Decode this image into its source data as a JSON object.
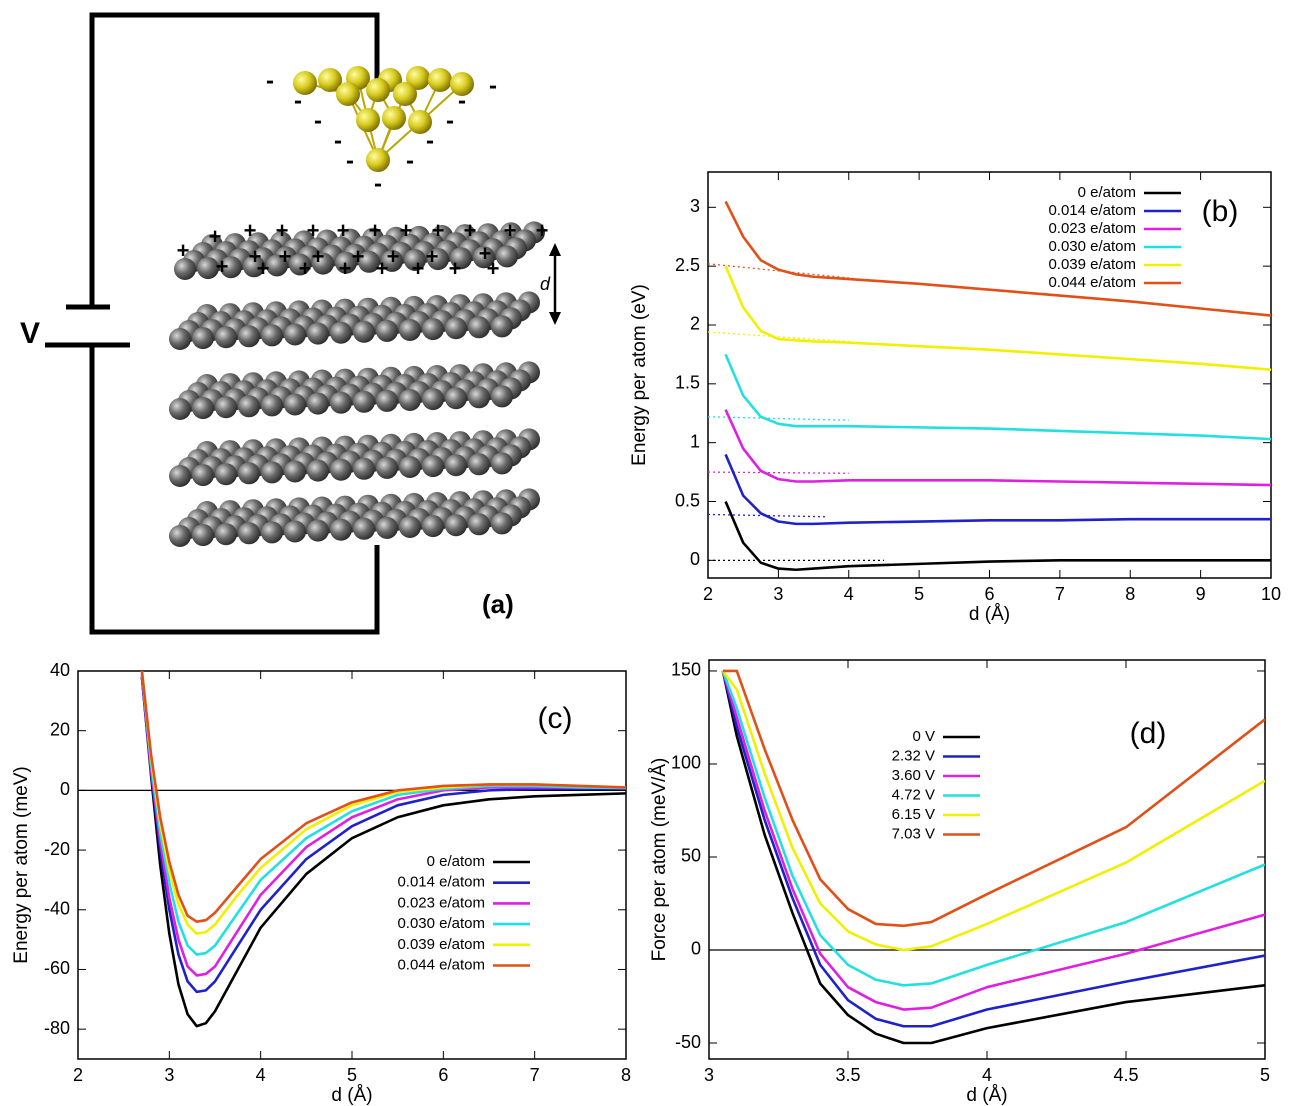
{
  "diagram": {
    "voltage_label": "V",
    "distance_label": "d",
    "panel_label": "(a)",
    "positive_charge": "+",
    "negative_charge": "-"
  },
  "chart_data": [
    {
      "type": "line",
      "panel_label": "(b)",
      "x_label": "d (Å)",
      "y_label": "Energy per atom (eV)",
      "x": [
        2.25,
        2.5,
        2.75,
        3,
        3.25,
        3.5,
        4,
        5,
        6,
        7,
        8,
        9,
        10
      ],
      "xlim": [
        2,
        10
      ],
      "ylim": [
        -0.15,
        3.3
      ],
      "xticks": [
        2,
        3,
        4,
        5,
        6,
        7,
        8,
        9,
        10
      ],
      "yticks": [
        0,
        0.5,
        1,
        1.5,
        2,
        2.5,
        3
      ],
      "legend": "upper right",
      "zero_line": false,
      "series": [
        {
          "name": "0 e/atom",
          "color": "#000000",
          "values": [
            0.5,
            0.15,
            -0.02,
            -0.07,
            -0.08,
            -0.07,
            -0.05,
            -0.03,
            -0.01,
            0,
            0,
            0,
            0
          ]
        },
        {
          "name": "0.014 e/atom",
          "color": "#1f22c8",
          "values": [
            0.9,
            0.55,
            0.4,
            0.33,
            0.31,
            0.31,
            0.32,
            0.33,
            0.34,
            0.34,
            0.35,
            0.35,
            0.35
          ]
        },
        {
          "name": "0.023 e/atom",
          "color": "#e020e0",
          "values": [
            1.28,
            0.95,
            0.76,
            0.69,
            0.67,
            0.67,
            0.68,
            0.68,
            0.68,
            0.67,
            0.66,
            0.65,
            0.64
          ]
        },
        {
          "name": "0.030 e/atom",
          "color": "#22e0e0",
          "values": [
            1.75,
            1.4,
            1.22,
            1.16,
            1.14,
            1.14,
            1.14,
            1.13,
            1.12,
            1.1,
            1.08,
            1.06,
            1.03
          ]
        },
        {
          "name": "0.039 e/atom",
          "color": "#f0f000",
          "values": [
            2.5,
            2.15,
            1.95,
            1.88,
            1.87,
            1.86,
            1.85,
            1.82,
            1.79,
            1.75,
            1.71,
            1.67,
            1.62
          ]
        },
        {
          "name": "0.044 e/atom",
          "color": "#e05018",
          "values": [
            3.05,
            2.75,
            2.55,
            2.47,
            2.43,
            2.41,
            2.39,
            2.35,
            2.3,
            2.25,
            2.2,
            2.14,
            2.08
          ]
        }
      ],
      "reference_lines": [
        {
          "color": "#000000",
          "x": [
            2,
            4.5
          ],
          "values": [
            0,
            0
          ]
        },
        {
          "color": "#1f22c8",
          "x": [
            2,
            3.7
          ],
          "values": [
            0.39,
            0.37
          ]
        },
        {
          "color": "#e020e0",
          "x": [
            2,
            4
          ],
          "values": [
            0.75,
            0.74
          ]
        },
        {
          "color": "#22e0e0",
          "x": [
            2,
            4
          ],
          "values": [
            1.22,
            1.19
          ]
        },
        {
          "color": "#f0f000",
          "x": [
            2,
            4
          ],
          "values": [
            1.94,
            1.86
          ]
        },
        {
          "color": "#e05018",
          "x": [
            2,
            4
          ],
          "values": [
            2.52,
            2.4
          ]
        }
      ]
    },
    {
      "type": "line",
      "panel_label": "(c)",
      "x_label": "d (Å)",
      "y_label": "Energy per atom (meV)",
      "x": [
        2.7,
        2.8,
        2.9,
        3,
        3.1,
        3.2,
        3.3,
        3.4,
        3.5,
        3.75,
        4,
        4.5,
        5,
        5.5,
        6,
        6.5,
        7,
        7.5,
        8
      ],
      "xlim": [
        2,
        8
      ],
      "ylim": [
        -90,
        40
      ],
      "xticks": [
        2,
        3,
        4,
        5,
        6,
        7,
        8
      ],
      "yticks": [
        -80,
        -60,
        -40,
        -20,
        0,
        20,
        40
      ],
      "legend": "lower right",
      "zero_line": true,
      "series": [
        {
          "name": "0 e/atom",
          "color": "#000000",
          "values": [
            38,
            5,
            -25,
            -48,
            -65,
            -75,
            -79,
            -78,
            -74,
            -60,
            -46,
            -28,
            -16,
            -9,
            -5,
            -3,
            -2,
            -1.5,
            -1
          ]
        },
        {
          "name": "0.014 e/atom",
          "color": "#1f22c8",
          "values": [
            38,
            6,
            -20,
            -40,
            -55,
            -64,
            -67.5,
            -67,
            -64,
            -52,
            -40,
            -23,
            -12,
            -5,
            -1.5,
            0,
            0.5,
            0.5,
            0.5
          ]
        },
        {
          "name": "0.023 e/atom",
          "color": "#e020e0",
          "values": [
            39,
            7,
            -17,
            -36,
            -50,
            -59,
            -62,
            -61.5,
            -59,
            -47,
            -35,
            -19,
            -9,
            -3,
            0,
            1,
            1,
            1,
            0.8
          ]
        },
        {
          "name": "0.030 e/atom",
          "color": "#22e0e0",
          "values": [
            40,
            9,
            -14,
            -31,
            -44,
            -52,
            -55,
            -54.5,
            -52,
            -41,
            -30,
            -16,
            -7,
            -1.5,
            0.5,
            1.5,
            1.5,
            1,
            0.8
          ]
        },
        {
          "name": "0.039 e/atom",
          "color": "#f0f000",
          "values": [
            40,
            11,
            -11,
            -27,
            -38,
            -45,
            -48,
            -47.5,
            -45,
            -35,
            -26,
            -13,
            -5,
            -0.5,
            1,
            2,
            2,
            1.5,
            1
          ]
        },
        {
          "name": "0.044 e/atom",
          "color": "#e05018",
          "values": [
            40,
            12,
            -9,
            -24,
            -35,
            -42,
            -44,
            -43.5,
            -41,
            -32,
            -23,
            -11,
            -4,
            0,
            1.5,
            2,
            2,
            1.5,
            1
          ]
        }
      ]
    },
    {
      "type": "line",
      "panel_label": "(d)",
      "x_label": "d (Å)",
      "y_label": "Force per atom (meV/Å)",
      "x": [
        3.05,
        3.1,
        3.2,
        3.3,
        3.4,
        3.5,
        3.6,
        3.7,
        3.8,
        4,
        4.5,
        5
      ],
      "xlim": [
        3,
        5
      ],
      "ylim": [
        -58.6,
        155.9
      ],
      "xticks": [
        3,
        3.5,
        4,
        4.5,
        5
      ],
      "yticks": [
        -50,
        0,
        50,
        100,
        150
      ],
      "legend": "upper center",
      "zero_line": true,
      "series": [
        {
          "name": "0 V",
          "color": "#000000",
          "values": [
            150,
            115,
            62,
            20,
            -18,
            -35,
            -45,
            -50,
            -50,
            -42,
            -28,
            -19
          ]
        },
        {
          "name": "2.32 V",
          "color": "#1f22c8",
          "values": [
            150,
            120,
            70,
            28,
            -8,
            -27,
            -37,
            -41,
            -41,
            -32,
            -17,
            -3
          ]
        },
        {
          "name": "3.60 V",
          "color": "#e020e0",
          "values": [
            150,
            125,
            75,
            33,
            -2,
            -20,
            -28,
            -32,
            -31,
            -20,
            -2,
            19
          ]
        },
        {
          "name": "4.72 V",
          "color": "#22e0e0",
          "values": [
            150,
            130,
            82,
            40,
            8,
            -8,
            -16,
            -19,
            -18,
            -8,
            15,
            46
          ]
        },
        {
          "name": "6.15 V",
          "color": "#f0f000",
          "values": [
            150,
            140,
            95,
            55,
            25,
            10,
            3,
            0,
            2,
            14,
            47,
            91
          ]
        },
        {
          "name": "7.03 V",
          "color": "#e05018",
          "values": [
            150,
            150,
            108,
            70,
            38,
            22,
            14,
            13,
            15,
            30,
            66,
            124
          ]
        }
      ]
    }
  ]
}
